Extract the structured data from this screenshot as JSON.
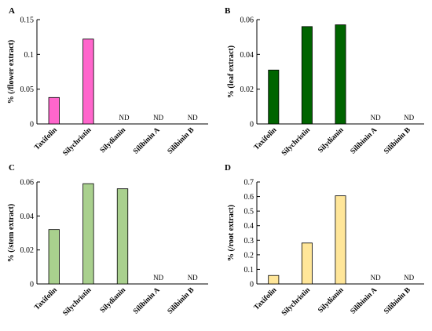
{
  "chart_data": [
    {
      "panel": "A",
      "type": "bar",
      "categories": [
        "Taxifolin",
        "Silychristin",
        "Silydianin",
        "Silibinin A",
        "Silibinin B"
      ],
      "values": [
        0.038,
        0.122,
        null,
        null,
        null
      ],
      "labels": [
        "",
        "",
        "ND",
        "ND",
        "ND"
      ],
      "ylabel": "% (/flower extract)",
      "ylim": [
        0,
        0.15
      ],
      "yticks": [
        "0",
        "0.05",
        "0.1",
        "0.15"
      ],
      "bar_color": "#ff66cc"
    },
    {
      "panel": "B",
      "type": "bar",
      "categories": [
        "Taxifolin",
        "Silychristin",
        "Silydianin",
        "Silibinin A",
        "Silibinin B"
      ],
      "values": [
        0.031,
        0.056,
        0.057,
        null,
        null
      ],
      "labels": [
        "",
        "",
        "",
        "ND",
        "ND"
      ],
      "ylabel": "% (leaf extract)",
      "ylim": [
        0,
        0.06
      ],
      "yticks": [
        "0",
        "0.02",
        "0.04",
        "0.06"
      ],
      "bar_color": "#006400"
    },
    {
      "panel": "C",
      "type": "bar",
      "categories": [
        "Taxifolin",
        "Silychristin",
        "Silydianin",
        "Silibinin A",
        "Silibinin B"
      ],
      "values": [
        0.032,
        0.059,
        0.056,
        null,
        null
      ],
      "labels": [
        "",
        "",
        "",
        "ND",
        "ND"
      ],
      "ylabel": "% (/stem extract)",
      "ylim": [
        0,
        0.06
      ],
      "yticks": [
        "0",
        "0.02",
        "0.04",
        "0.06"
      ],
      "bar_color": "#a9d08e"
    },
    {
      "panel": "D",
      "type": "bar",
      "categories": [
        "Taxifolin",
        "Silychristin",
        "Silydianin",
        "Silibinin A",
        "Silibinin B"
      ],
      "values": [
        0.058,
        0.281,
        0.605,
        null,
        null
      ],
      "labels": [
        "",
        "",
        "",
        "ND",
        "ND"
      ],
      "ylabel": "% (/root extract)",
      "ylim": [
        0,
        0.7
      ],
      "yticks": [
        "0",
        "0.1",
        "0.2",
        "0.3",
        "0.4",
        "0.5",
        "0.6",
        "0.7"
      ],
      "bar_color": "#ffe699"
    }
  ]
}
